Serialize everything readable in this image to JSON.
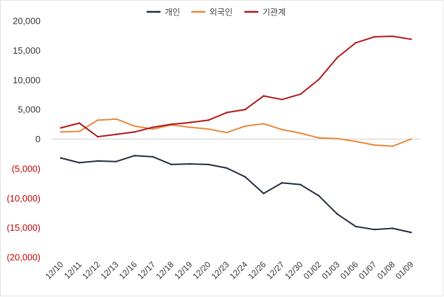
{
  "chart_data": {
    "type": "line",
    "title": "",
    "xlabel": "",
    "ylabel": "",
    "legend_position": "top-center",
    "grid": false,
    "ylim": [
      -20000,
      20000
    ],
    "yticks": [
      {
        "value": 20000,
        "label": "20,000"
      },
      {
        "value": 15000,
        "label": "15,000"
      },
      {
        "value": 10000,
        "label": "10,000"
      },
      {
        "value": 5000,
        "label": "5,000"
      },
      {
        "value": 0,
        "label": "0"
      },
      {
        "value": -5000,
        "label": "(5,000)"
      },
      {
        "value": -10000,
        "label": "(10,000)"
      },
      {
        "value": -15000,
        "label": "(15,000)"
      },
      {
        "value": -20000,
        "label": "(20,000)"
      }
    ],
    "negative_tick_color": "#c00000",
    "categories": [
      "12/10",
      "12/11",
      "12/12",
      "12/13",
      "12/16",
      "12/17",
      "12/18",
      "12/19",
      "12/20",
      "12/23",
      "12/24",
      "12/26",
      "12/27",
      "12/30",
      "01/02",
      "01/03",
      "01/06",
      "01/07",
      "01/08",
      "01/09"
    ],
    "series": [
      {
        "name": "개인",
        "color": "#1f2a3c",
        "values": [
          -3200,
          -4000,
          -3700,
          -3800,
          -2800,
          -3000,
          -4300,
          -4200,
          -4300,
          -4900,
          -6400,
          -9200,
          -7400,
          -7700,
          -9600,
          -12700,
          -14800,
          -15300,
          -15100,
          -15800
        ]
      },
      {
        "name": "외국인",
        "color": "#e8873a",
        "values": [
          1200,
          1300,
          3200,
          3400,
          2200,
          1700,
          2400,
          2000,
          1700,
          1100,
          2200,
          2600,
          1600,
          1000,
          200,
          100,
          -400,
          -1000,
          -1200,
          0
        ]
      },
      {
        "name": "기관계",
        "color": "#b01515",
        "values": [
          1900,
          2700,
          400,
          800,
          1200,
          2000,
          2500,
          2800,
          3200,
          4500,
          5000,
          7300,
          6700,
          7600,
          10100,
          13800,
          16300,
          17300,
          17400,
          16900
        ]
      }
    ]
  }
}
